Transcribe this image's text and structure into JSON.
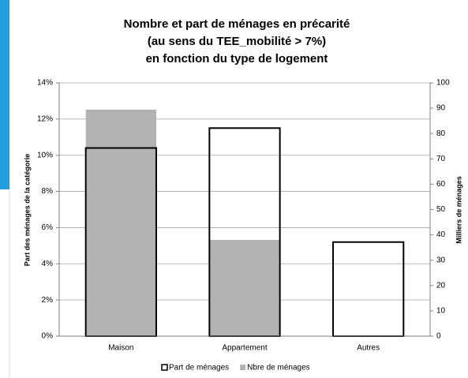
{
  "chart_data": {
    "type": "bar",
    "title": [
      "Nombre et part de ménages en précarité",
      "(au sens du TEE_mobilité > 7%)",
      "en fonction du type de logement"
    ],
    "categories": [
      "Maison",
      "Appartement",
      "Autres"
    ],
    "series": [
      {
        "name": "Nbre de ménages",
        "color": "#b3b3b3",
        "axis": "y2",
        "values": [
          89.4,
          38,
          0.3
        ]
      },
      {
        "name": "Part de ménages",
        "color": "#000000",
        "axis": "y",
        "values": [
          10.4,
          11.5,
          5.2
        ]
      }
    ],
    "ylabel": "Part des ménages de la catégorie",
    "y2label": "Milliers de ménages",
    "ylim": [
      0,
      14
    ],
    "yticks": [
      {
        "value": 0,
        "label": "0%"
      },
      {
        "value": 2,
        "label": "2%"
      },
      {
        "value": 4,
        "label": "4%"
      },
      {
        "value": 6,
        "label": "6%"
      },
      {
        "value": 8,
        "label": "8%"
      },
      {
        "value": 10,
        "label": "10%"
      },
      {
        "value": 12,
        "label": "12%"
      },
      {
        "value": 14,
        "label": "14%"
      }
    ],
    "y2lim": [
      0,
      100
    ],
    "y2ticks": [
      0,
      10,
      20,
      30,
      40,
      50,
      60,
      70,
      80,
      90,
      100
    ],
    "grid": true,
    "legend": "bottom"
  }
}
